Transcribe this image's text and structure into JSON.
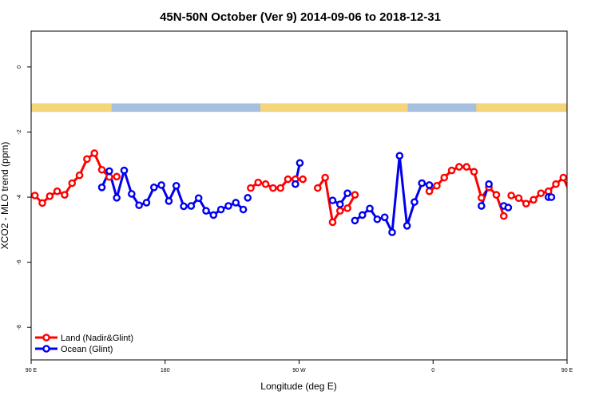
{
  "chart_data": {
    "type": "line",
    "title": "45N-50N October (Ver 9)   2014-09-06 to 2018-12-31",
    "xlabel": "Longitude (deg E)",
    "ylabel": "XCO2 - MLO trend (ppm)",
    "xlim": [
      90,
      450
    ],
    "ylim": [
      -9,
      1.1
    ],
    "x_ticks": [
      {
        "value": 90,
        "label": "90 E"
      },
      {
        "value": 180,
        "label": "180"
      },
      {
        "value": 270,
        "label": "90 W"
      },
      {
        "value": 360,
        "label": "0"
      },
      {
        "value": 450,
        "label": "90 E"
      },
      {
        "value": 540,
        "label": "180"
      }
    ],
    "y_ticks": [
      {
        "value": 0,
        "label": "0"
      },
      {
        "value": -2,
        "label": "-2"
      },
      {
        "value": -4,
        "label": "-4"
      },
      {
        "value": -6,
        "label": "-6"
      },
      {
        "value": -8,
        "label": "-8"
      }
    ],
    "grid": false,
    "legend_position": "bottom-left",
    "land_strip_y": [
      -1.12,
      -1.38
    ],
    "land_strip_colors": {
      "land": "#f5d57a",
      "ocean": "#a7bfdf"
    },
    "land_longitude_segments": [
      [
        90,
        144
      ],
      [
        244,
        343
      ],
      [
        389,
        508
      ],
      [
        524,
        552
      ]
    ],
    "series": [
      {
        "name": "Land (Nadir&Glint)",
        "color": "#ff0000",
        "segments": [
          {
            "x": [
              92.5,
              97.5,
              102.5,
              107.5,
              112.5,
              117.5,
              122.5,
              127.5,
              132.5,
              137.5,
              142.5
            ],
            "y": [
              -3.95,
              -4.18,
              -3.97,
              -3.82,
              -3.93,
              -3.57,
              -3.33,
              -2.83,
              -2.65,
              -3.16,
              -3.38
            ]
          },
          {
            "x": [
              147.5
            ],
            "y": [
              -3.37
            ]
          },
          {
            "x": [
              237.5,
              242.5,
              247.5,
              252.5,
              257.5,
              262.5,
              267.5,
              272.5
            ],
            "y": [
              -3.72,
              -3.55,
              -3.6,
              -3.72,
              -3.72,
              -3.45,
              -3.45,
              -3.45
            ]
          },
          {
            "x": [
              282.5,
              287.5,
              292.5,
              297.5,
              302.5,
              307.5
            ],
            "y": [
              -3.72,
              -3.4,
              -4.77,
              -4.42,
              -4.34,
              -3.93
            ]
          },
          {
            "x": [
              357.5,
              362.5,
              367.5,
              372.5,
              377.5,
              382.5,
              387.5,
              392.5,
              397.5,
              402.5,
              407.5
            ],
            "y": [
              -3.82,
              -3.65,
              -3.4,
              -3.18,
              -3.07,
              -3.07,
              -3.22,
              -4.02,
              -3.7,
              -3.93,
              -4.58
            ]
          },
          {
            "x": [
              412.5,
              417.5,
              422.5,
              427.5,
              432.5,
              437.5,
              442.5,
              447.5,
              452.5,
              457.5,
              462.5,
              467.5,
              472.5,
              477.5,
              482.5,
              487.5,
              492.5,
              497.5
            ],
            "y": [
              -3.95,
              -4.03,
              -4.2,
              -4.08,
              -3.88,
              -3.82,
              -3.6,
              -3.4,
              -3.92,
              -4.18,
              -3.95,
              -3.82,
              -3.93,
              -3.57,
              -3.33,
              -2.83,
              -2.65,
              -3.16
            ]
          },
          {
            "x": [
              500.5
            ],
            "y": [
              -3.38
            ]
          }
        ]
      },
      {
        "name": "Ocean (Glint)",
        "color": "#0000ee",
        "segments": [
          {
            "x": [
              137.5,
              142.5,
              147.5,
              152.5,
              157.5,
              162.5,
              167.5,
              172.5,
              177.5,
              182.5,
              187.5,
              192.5,
              197.5,
              202.5,
              207.5,
              212.5,
              217.5,
              222.5,
              227.5,
              232.5
            ],
            "y": [
              -3.7,
              -3.2,
              -4.02,
              -3.18,
              -3.9,
              -4.25,
              -4.17,
              -3.7,
              -3.63,
              -4.12,
              -3.65,
              -4.28,
              -4.27,
              -4.03,
              -4.42,
              -4.55,
              -4.38,
              -4.27,
              -4.17,
              -4.38
            ]
          },
          {
            "x": [
              235.5
            ],
            "y": [
              -4.02
            ]
          },
          {
            "x": [
              267.5,
              270.5
            ],
            "y": [
              -3.6,
              -2.95
            ]
          },
          {
            "x": [
              292.5,
              297.5,
              302.5
            ],
            "y": [
              -4.1,
              -4.22,
              -3.88
            ]
          },
          {
            "x": [
              307.5,
              312.5,
              317.5,
              322.5,
              327.5,
              332.5,
              337.5,
              342.5,
              347.5,
              352.5
            ],
            "y": [
              -4.72,
              -4.55,
              -4.35,
              -4.68,
              -4.62,
              -5.08,
              -2.73,
              -4.88,
              -4.15,
              -3.57
            ]
          },
          {
            "x": [
              352.5,
              357.5
            ],
            "y": [
              -3.57,
              -3.63
            ]
          },
          {
            "x": [
              392.5,
              397.5
            ],
            "y": [
              -4.27,
              -3.6
            ]
          },
          {
            "x": [
              407.5,
              410.5
            ],
            "y": [
              -4.27,
              -4.32
            ]
          },
          {
            "x": [
              437.5,
              439.5
            ],
            "y": [
              -4.0,
              -4.0
            ]
          },
          {
            "x": [
              497.5,
              502.5,
              507.5,
              512.5,
              517.5,
              522.5,
              527.5,
              532.5,
              537.5,
              542.5,
              547.5
            ],
            "y": [
              -3.7,
              -3.2,
              -4.02,
              -3.18,
              -3.9,
              -4.25,
              -4.17,
              -3.7,
              -3.63,
              -4.12,
              -3.65
            ]
          }
        ]
      }
    ]
  }
}
